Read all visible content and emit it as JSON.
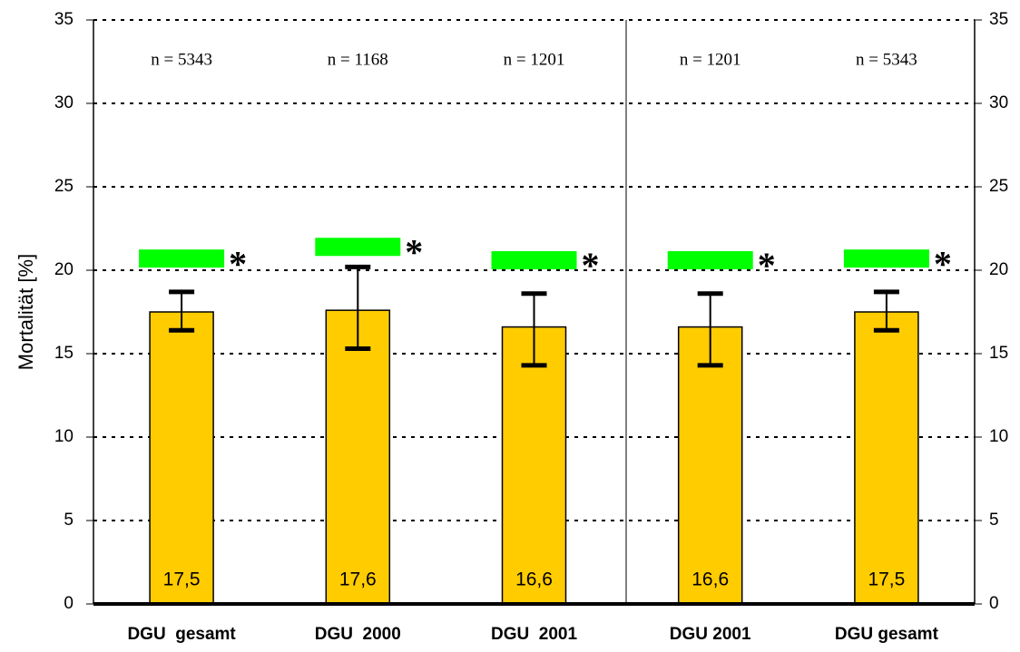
{
  "chart_data": {
    "type": "bar",
    "y_label": "Mortalität [%]",
    "categories": [
      "DGU  gesamt",
      "DGU  2000",
      "DGU  2001",
      "DGU 2001",
      "DGU gesamt"
    ],
    "annotations": [
      "n = 5343",
      "n = 1168",
      "n = 1201",
      "n = 1201",
      "n = 5343"
    ],
    "series": [
      {
        "color": "#ffcc00",
        "values": [
          17.5,
          17.6,
          16.6,
          16.6,
          17.5
        ],
        "value_labels": [
          "17,5",
          "17,6",
          "16,6",
          "16,6",
          "17,5"
        ],
        "ci_low": [
          16.4,
          15.3,
          14.3,
          14.3,
          16.4
        ],
        "ci_high": [
          18.7,
          20.2,
          18.6,
          18.6,
          18.7
        ]
      }
    ],
    "significance": {
      "color": "#00ff00",
      "symbol": "*",
      "values": [
        20.7,
        21.4,
        20.6,
        20.6,
        20.7
      ]
    },
    "ylim": [
      0,
      35
    ],
    "yticks": [
      0,
      5,
      10,
      15,
      20,
      25,
      30,
      35
    ],
    "y2lim": [
      0,
      35
    ],
    "y2ticks": [
      0,
      5,
      10,
      15,
      20,
      25,
      30,
      35
    ],
    "grid": true
  }
}
